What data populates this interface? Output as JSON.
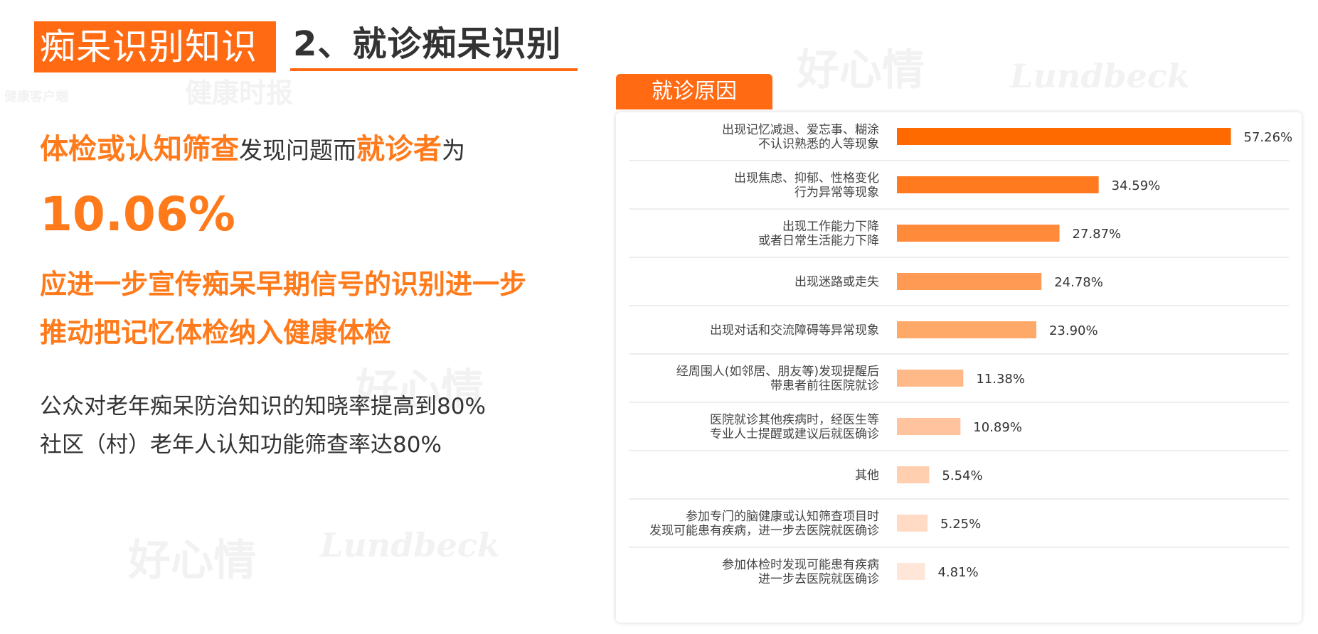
{
  "header": {
    "section_title": "痴呆识别知识",
    "subtitle": "2、就诊痴呆识别"
  },
  "left": {
    "line1_parts": [
      "体检或认知筛查",
      "发现问题而",
      "就诊者",
      "为"
    ],
    "percent": "10.06%",
    "claim_lines": [
      "应进一步宣传痴呆早期信号的识别进一步",
      "推动把记忆体检纳入健康体检"
    ],
    "goals": [
      "公众对老年痴呆防治知识的知晓率提高到80%",
      "社区（村）老年人认知功能筛查率达80%"
    ]
  },
  "watermarks": {
    "brand_cn": "好心情",
    "brand_en": "Lundbeck",
    "paper": "健康时报",
    "app": "健康客户端"
  },
  "chart_tag": "就诊原因",
  "colors": {
    "accent": "#ff6a13",
    "text": "#333333",
    "highlight": "#ff7a1a"
  },
  "chart_data": {
    "type": "bar",
    "orientation": "horizontal",
    "title": "就诊原因",
    "categories": [
      [
        "出现记忆减退、爱忘事、糊涂",
        "不认识熟悉的人等现象"
      ],
      [
        "出现焦虑、抑郁、性格变化",
        "行为异常等现象"
      ],
      [
        "出现工作能力下降",
        "或者日常生活能力下降"
      ],
      [
        "出现迷路或走失"
      ],
      [
        "出现对话和交流障碍等异常现象"
      ],
      [
        "经周围人(如邻居、朋友等)发现提醒后",
        "带患者前往医院就诊"
      ],
      [
        "医院就诊其他疾病时，经医生等",
        "专业人士提醒或建议后就医确诊"
      ],
      [
        "其他"
      ],
      [
        "参加专门的脑健康或认知筛查项目时",
        "发现可能患有疾病，进一步去医院就医确诊"
      ],
      [
        "参加体检时发现可能患有疾病",
        "进一步去医院就医确诊"
      ]
    ],
    "values": [
      57.26,
      34.59,
      27.87,
      24.78,
      23.9,
      11.38,
      10.89,
      5.54,
      5.25,
      4.81
    ],
    "value_labels": [
      "57.26%",
      "34.59%",
      "27.87%",
      "24.78%",
      "23.90%",
      "11.38%",
      "10.89%",
      "5.54%",
      "5.25%",
      "4.81%"
    ],
    "bar_colors": [
      "#ff6a00",
      "#ff7a1f",
      "#ff8a3a",
      "#ff9a55",
      "#ffa968",
      "#ffb887",
      "#ffc49d",
      "#ffcfb0",
      "#ffdac4",
      "#ffe6d8"
    ],
    "grid": false,
    "legend": "none"
  }
}
